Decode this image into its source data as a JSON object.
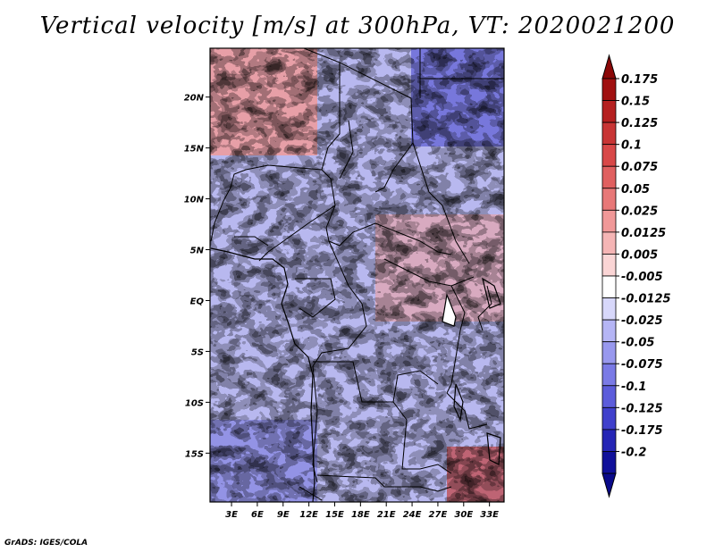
{
  "title": "Vertical velocity [m/s] at 300hPa, VT: 2020021200",
  "credit": "GrADS: IGES/COLA",
  "map": {
    "lon_labels": [
      "3E",
      "6E",
      "9E",
      "12E",
      "15E",
      "18E",
      "21E",
      "24E",
      "27E",
      "30E",
      "33E"
    ],
    "lon_values": [
      3,
      6,
      9,
      12,
      15,
      18,
      21,
      24,
      27,
      30,
      33
    ],
    "lat_labels": [
      "20N",
      "15N",
      "10N",
      "5N",
      "EQ",
      "5S",
      "10S",
      "15S"
    ],
    "lat_values": [
      20,
      15,
      10,
      5,
      0,
      -5,
      -10,
      -15
    ],
    "lon_range": [
      0.5,
      34.7
    ],
    "lat_range": [
      -19.8,
      24.8
    ]
  },
  "colorbar": {
    "labels": [
      "0.175",
      "0.15",
      "0.125",
      "0.1",
      "0.075",
      "0.05",
      "0.025",
      "0.0125",
      "0.005",
      "-0.005",
      "-0.0125",
      "-0.025",
      "-0.05",
      "-0.075",
      "-0.1",
      "-0.125",
      "-0.175",
      "-0.2"
    ],
    "colors": [
      "#a01010",
      "#b52020",
      "#c83535",
      "#d84848",
      "#e06060",
      "#e87878",
      "#f09898",
      "#f5b5b5",
      "#fad5d5",
      "#ffffff",
      "#d7d7fa",
      "#b5b5f5",
      "#9898ee",
      "#7a7ae6",
      "#5c5cdb",
      "#4040cc",
      "#2525b5",
      "#10109a"
    ],
    "top_arrow_color": "#8b0808",
    "bottom_arrow_color": "#0a0a8a"
  }
}
